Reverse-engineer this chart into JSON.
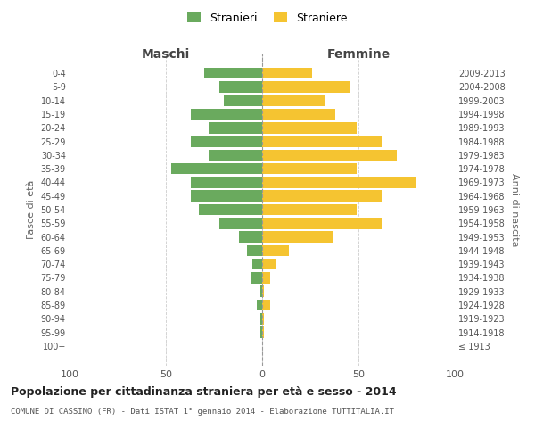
{
  "age_groups": [
    "100+",
    "95-99",
    "90-94",
    "85-89",
    "80-84",
    "75-79",
    "70-74",
    "65-69",
    "60-64",
    "55-59",
    "50-54",
    "45-49",
    "40-44",
    "35-39",
    "30-34",
    "25-29",
    "20-24",
    "15-19",
    "10-14",
    "5-9",
    "0-4"
  ],
  "birth_years": [
    "≤ 1913",
    "1914-1918",
    "1919-1923",
    "1924-1928",
    "1929-1933",
    "1934-1938",
    "1939-1943",
    "1944-1948",
    "1949-1953",
    "1954-1958",
    "1959-1963",
    "1964-1968",
    "1969-1973",
    "1974-1978",
    "1979-1983",
    "1984-1988",
    "1989-1993",
    "1994-1998",
    "1999-2003",
    "2004-2008",
    "2009-2013"
  ],
  "maschi": [
    0,
    1,
    1,
    3,
    1,
    6,
    5,
    8,
    12,
    22,
    33,
    37,
    37,
    47,
    28,
    37,
    28,
    37,
    20,
    22,
    30
  ],
  "femmine": [
    0,
    1,
    1,
    4,
    1,
    4,
    7,
    14,
    37,
    62,
    49,
    62,
    80,
    49,
    70,
    62,
    49,
    38,
    33,
    46,
    26
  ],
  "maschi_color": "#6aaa5e",
  "femmine_color": "#f5c431",
  "title": "Popolazione per cittadinanza straniera per età e sesso - 2014",
  "subtitle": "COMUNE DI CASSINO (FR) - Dati ISTAT 1° gennaio 2014 - Elaborazione TUTTITALIA.IT",
  "xlabel_left": "Maschi",
  "xlabel_right": "Femmine",
  "ylabel_left": "Fasce di età",
  "ylabel_right": "Anni di nascita",
  "legend_stranieri": "Stranieri",
  "legend_straniere": "Straniere",
  "xlim": [
    -100,
    100
  ],
  "background_color": "#ffffff",
  "grid_color": "#cccccc"
}
